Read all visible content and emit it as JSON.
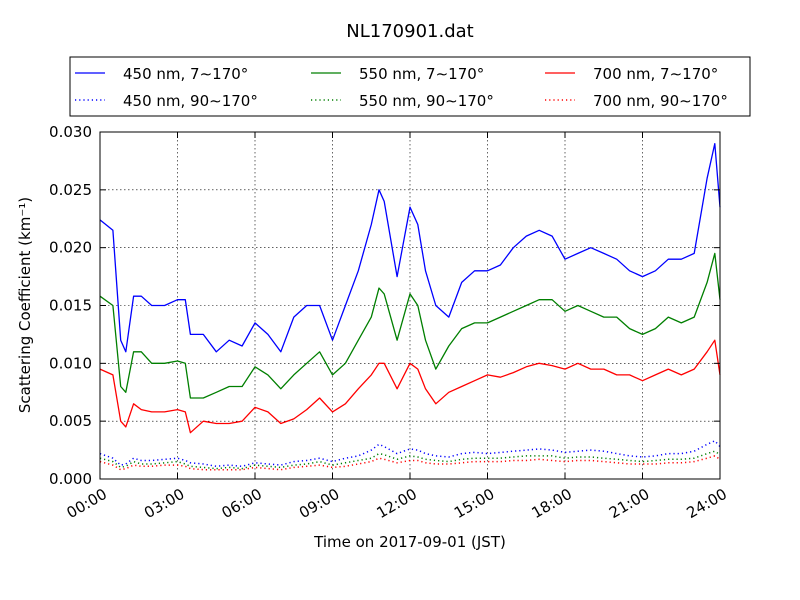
{
  "chart_data": {
    "type": "line",
    "title": "NL170901.dat",
    "xlabel": "Time on 2017-09-01 (JST)",
    "ylabel": "Scattering Coefficient (km⁻¹)",
    "xlim": [
      0,
      24
    ],
    "ylim": [
      0,
      0.03
    ],
    "x_ticks": [
      0,
      3,
      6,
      9,
      12,
      15,
      18,
      21,
      24
    ],
    "x_tick_labels": [
      "00:00",
      "03:00",
      "06:00",
      "09:00",
      "12:00",
      "15:00",
      "18:00",
      "21:00",
      "24:00"
    ],
    "y_ticks": [
      0,
      0.005,
      0.01,
      0.015,
      0.02,
      0.025,
      0.03
    ],
    "y_tick_labels": [
      "0.000",
      "0.005",
      "0.010",
      "0.015",
      "0.020",
      "0.025",
      "0.030"
    ],
    "grid": true,
    "legend_position": "top",
    "x": [
      0,
      0.5,
      0.8,
      1,
      1.3,
      1.6,
      2,
      2.5,
      3,
      3.3,
      3.5,
      4,
      4.5,
      5,
      5.5,
      6,
      6.5,
      7,
      7.5,
      8,
      8.5,
      9,
      9.5,
      10,
      10.5,
      10.8,
      11,
      11.5,
      12,
      12.3,
      12.6,
      13,
      13.5,
      14,
      14.5,
      15,
      15.5,
      16,
      16.5,
      17,
      17.5,
      18,
      18.5,
      19,
      19.5,
      20,
      20.5,
      21,
      21.5,
      22,
      22.5,
      23,
      23.5,
      23.8,
      24
    ],
    "series": [
      {
        "name": "450 nm, 7∼170°",
        "style": "solid",
        "color": "#0000ff",
        "values": [
          0.0224,
          0.0215,
          0.012,
          0.011,
          0.0158,
          0.0158,
          0.015,
          0.015,
          0.0155,
          0.0155,
          0.0125,
          0.0125,
          0.011,
          0.012,
          0.0115,
          0.0135,
          0.0125,
          0.011,
          0.014,
          0.015,
          0.015,
          0.012,
          0.015,
          0.018,
          0.022,
          0.025,
          0.024,
          0.0175,
          0.0235,
          0.022,
          0.018,
          0.015,
          0.014,
          0.017,
          0.018,
          0.018,
          0.0185,
          0.02,
          0.021,
          0.0215,
          0.021,
          0.019,
          0.0195,
          0.02,
          0.0195,
          0.019,
          0.018,
          0.0175,
          0.018,
          0.019,
          0.019,
          0.0195,
          0.026,
          0.029,
          0.0235
        ]
      },
      {
        "name": "450 nm, 90∼170°",
        "style": "dotted",
        "color": "#0000ff",
        "values": [
          0.0022,
          0.0018,
          0.0012,
          0.0013,
          0.0018,
          0.0016,
          0.0016,
          0.0017,
          0.0018,
          0.0016,
          0.0014,
          0.0013,
          0.0011,
          0.0012,
          0.0011,
          0.0014,
          0.0013,
          0.0012,
          0.0015,
          0.0016,
          0.0018,
          0.0015,
          0.0018,
          0.002,
          0.0025,
          0.003,
          0.0028,
          0.0022,
          0.0026,
          0.0025,
          0.0022,
          0.002,
          0.0019,
          0.0022,
          0.0023,
          0.0022,
          0.0023,
          0.0024,
          0.0025,
          0.0026,
          0.0025,
          0.0023,
          0.0024,
          0.0025,
          0.0024,
          0.0022,
          0.002,
          0.0019,
          0.002,
          0.0022,
          0.0022,
          0.0024,
          0.003,
          0.0033,
          0.0028
        ]
      },
      {
        "name": "550 nm, 7∼170°",
        "style": "solid",
        "color": "#007f00",
        "values": [
          0.0158,
          0.015,
          0.008,
          0.0075,
          0.011,
          0.011,
          0.01,
          0.01,
          0.0102,
          0.01,
          0.007,
          0.007,
          0.0075,
          0.008,
          0.008,
          0.0097,
          0.009,
          0.0078,
          0.009,
          0.01,
          0.011,
          0.009,
          0.01,
          0.012,
          0.014,
          0.0165,
          0.016,
          0.012,
          0.016,
          0.015,
          0.012,
          0.0095,
          0.0115,
          0.013,
          0.0135,
          0.0135,
          0.014,
          0.0145,
          0.015,
          0.0155,
          0.0155,
          0.0145,
          0.015,
          0.0145,
          0.014,
          0.014,
          0.013,
          0.0125,
          0.013,
          0.014,
          0.0135,
          0.014,
          0.017,
          0.0195,
          0.0155
        ]
      },
      {
        "name": "550 nm, 90∼170°",
        "style": "dotted",
        "color": "#007f00",
        "values": [
          0.0018,
          0.0015,
          0.001,
          0.0011,
          0.0015,
          0.0013,
          0.0013,
          0.0014,
          0.0015,
          0.0013,
          0.0011,
          0.001,
          0.0009,
          0.001,
          0.0009,
          0.0012,
          0.0011,
          0.001,
          0.0012,
          0.0013,
          0.0015,
          0.0012,
          0.0014,
          0.0016,
          0.0018,
          0.0022,
          0.0021,
          0.0017,
          0.002,
          0.0019,
          0.0017,
          0.0016,
          0.0015,
          0.0017,
          0.0018,
          0.0018,
          0.0018,
          0.0019,
          0.002,
          0.002,
          0.002,
          0.0018,
          0.0019,
          0.0019,
          0.0018,
          0.0017,
          0.0016,
          0.0015,
          0.0016,
          0.0017,
          0.0017,
          0.0018,
          0.0022,
          0.0024,
          0.0021
        ]
      },
      {
        "name": "700 nm, 7∼170°",
        "style": "solid",
        "color": "#ff0000",
        "values": [
          0.0095,
          0.009,
          0.005,
          0.0045,
          0.0065,
          0.006,
          0.0058,
          0.0058,
          0.006,
          0.0058,
          0.004,
          0.005,
          0.0048,
          0.0048,
          0.005,
          0.0062,
          0.0058,
          0.0048,
          0.0052,
          0.006,
          0.007,
          0.0058,
          0.0065,
          0.0078,
          0.009,
          0.01,
          0.01,
          0.0078,
          0.01,
          0.0095,
          0.0078,
          0.0065,
          0.0075,
          0.008,
          0.0085,
          0.009,
          0.0088,
          0.0092,
          0.0097,
          0.01,
          0.0098,
          0.0095,
          0.01,
          0.0095,
          0.0095,
          0.009,
          0.009,
          0.0085,
          0.009,
          0.0095,
          0.009,
          0.0095,
          0.011,
          0.012,
          0.009
        ]
      },
      {
        "name": "700 nm, 90∼170°",
        "style": "dotted",
        "color": "#ff0000",
        "values": [
          0.0015,
          0.0012,
          0.0008,
          0.0009,
          0.0012,
          0.0011,
          0.0011,
          0.0012,
          0.0012,
          0.0011,
          0.0009,
          0.0008,
          0.0008,
          0.0008,
          0.0008,
          0.001,
          0.0009,
          0.0008,
          0.001,
          0.0011,
          0.0012,
          0.001,
          0.0011,
          0.0013,
          0.0015,
          0.0018,
          0.0017,
          0.0014,
          0.0016,
          0.0016,
          0.0014,
          0.0013,
          0.0013,
          0.0014,
          0.0015,
          0.0015,
          0.0015,
          0.0016,
          0.0016,
          0.0017,
          0.0016,
          0.0015,
          0.0016,
          0.0016,
          0.0015,
          0.0014,
          0.0013,
          0.0013,
          0.0013,
          0.0014,
          0.0014,
          0.0015,
          0.0018,
          0.002,
          0.0017
        ]
      }
    ]
  }
}
